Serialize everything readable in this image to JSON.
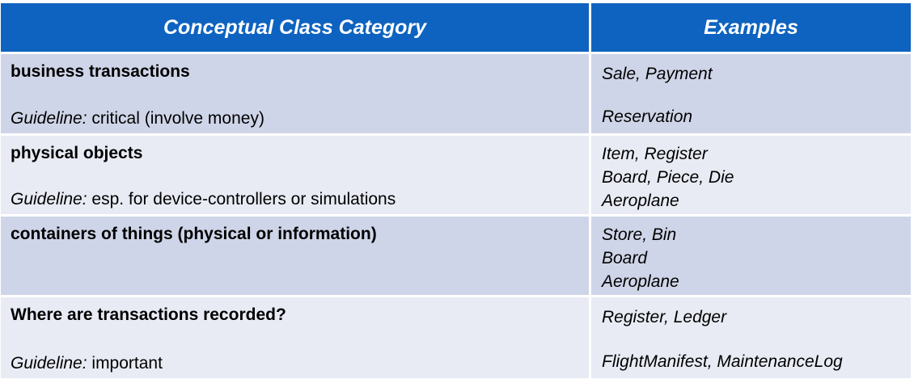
{
  "header": {
    "category": "Conceptual Class Category",
    "examples": "Examples"
  },
  "rows": [
    {
      "category": "business transactions",
      "guideline_label": "Guideline:",
      "guideline_text": " critical (involve money)",
      "examples": [
        "Sale, Payment",
        "Reservation"
      ]
    },
    {
      "category": "physical objects",
      "guideline_label": "Guideline:",
      "guideline_text": " esp. for device-controllers or simulations",
      "examples": [
        "Item, Register",
        "Board, Piece, Die",
        "Aeroplane"
      ]
    },
    {
      "category": "containers of things (physical or information)",
      "examples": [
        "Store, Bin",
        "Board",
        "Aeroplane"
      ]
    },
    {
      "category": "Where are transactions recorded?",
      "guideline_label": "Guideline:",
      "guideline_text": " important",
      "examples": [
        "Register, Ledger",
        "FlightManifest, MaintenanceLog"
      ]
    }
  ],
  "colors": {
    "header_bg": "#0e63c0",
    "row_dark": "#cfd5e8",
    "row_light": "#e8ebf4"
  }
}
